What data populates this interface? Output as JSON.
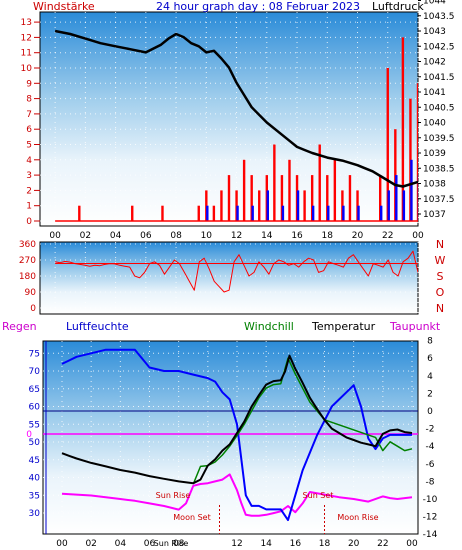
{
  "chart_data": [
    {
      "type": "line",
      "title": "24 hour graph day : 08 Februar 2023",
      "left_label": "Windstärke",
      "right_label": "Luftdruck",
      "x_ticks": [
        "00",
        "02",
        "04",
        "06",
        "08",
        "10",
        "12",
        "14",
        "16",
        "18",
        "20",
        "22",
        "00"
      ],
      "left_ticks": [
        "0",
        "1",
        "2",
        "3",
        "4",
        "5",
        "6",
        "7",
        "8",
        "9",
        "10",
        "11",
        "12",
        "13"
      ],
      "right_ticks": [
        "1037",
        "1037.5",
        "1038",
        "1038.5",
        "1039",
        "1039.5",
        "1040",
        "1040.5",
        "1041",
        "1041.5",
        "1042",
        "1042.5",
        "1043",
        "1043.5",
        "1044"
      ],
      "ylim_left": [
        0,
        13
      ],
      "ylim_right": [
        1036.8,
        1044.3
      ],
      "series": [
        {
          "name": "Luftdruck",
          "color": "#000000",
          "x": [
            0,
            1,
            2,
            3,
            4,
            5,
            6,
            7,
            7.5,
            8,
            8.5,
            9,
            9.5,
            10,
            10.5,
            11,
            11.5,
            12,
            12.5,
            13,
            13.5,
            14,
            15,
            15.5,
            16,
            16.5,
            17,
            18,
            19,
            20,
            20.5,
            21,
            22,
            22.5,
            23,
            24
          ],
          "y": [
            1043,
            1042.9,
            1042.75,
            1042.6,
            1042.5,
            1042.4,
            1042.3,
            1042.55,
            1042.75,
            1042.9,
            1042.8,
            1042.6,
            1042.5,
            1042.3,
            1042.35,
            1042.1,
            1041.8,
            1041.3,
            1040.9,
            1040.5,
            1040.25,
            1040.0,
            1039.6,
            1039.4,
            1039.2,
            1039.1,
            1039.0,
            1038.85,
            1038.75,
            1038.6,
            1038.5,
            1038.4,
            1038.1,
            1037.95,
            1037.9,
            1038.05
          ]
        },
        {
          "name": "Windstärke (Böen)",
          "color": "#ff0000",
          "x": [
            0,
            1,
            1.5,
            1.6,
            1.7,
            2,
            5,
            5.1,
            5.2,
            5.5,
            7,
            7.1,
            7.2,
            8,
            9,
            9.5,
            10,
            10.5,
            11,
            11.5,
            12,
            12.5,
            13,
            13.5,
            14,
            14.5,
            15,
            15.5,
            16,
            16.5,
            17,
            17.5,
            18,
            18.5,
            19,
            19.5,
            20,
            21,
            21.5,
            22,
            22.5,
            23,
            23.5,
            24
          ],
          "y": [
            0,
            0,
            0,
            1,
            0,
            0,
            0,
            1,
            0,
            0,
            0,
            1,
            0,
            0,
            0,
            1,
            2,
            1,
            2,
            3,
            2,
            4,
            3,
            2,
            3,
            5,
            3,
            4,
            3,
            2,
            3,
            5,
            3,
            4,
            2,
            3,
            2,
            0,
            3,
            10,
            6,
            12,
            8,
            9
          ]
        },
        {
          "name": "Windstärke (Mittel)",
          "color": "#0000ff",
          "x": [
            9,
            10,
            11,
            12,
            13,
            14,
            15,
            16,
            17,
            18,
            19,
            20,
            21,
            21.5,
            22,
            22.5,
            23,
            23.5,
            24
          ],
          "y": [
            0,
            1,
            0,
            1,
            1,
            2,
            1,
            2,
            1,
            1,
            1,
            1,
            0,
            1,
            2,
            3,
            2,
            4,
            3
          ]
        }
      ]
    },
    {
      "type": "scatter",
      "title": "",
      "y_ticks": [
        "0",
        "90",
        "180",
        "270",
        "360"
      ],
      "right_letters": [
        "N",
        "W",
        "S",
        "O",
        "N"
      ],
      "ylim": [
        0,
        360
      ],
      "series": [
        {
          "name": "Windrichtung",
          "color": "#ff0000",
          "x_range": [
            0,
            24
          ],
          "y": [
            260,
            255,
            262,
            258,
            250,
            245,
            240,
            235,
            240,
            238,
            245,
            250,
            248,
            240,
            235,
            230,
            180,
            170,
            200,
            250,
            260,
            240,
            190,
            230,
            270,
            250,
            200,
            150,
            100,
            260,
            280,
            220,
            150,
            120,
            90,
            100,
            260,
            300,
            240,
            180,
            200,
            260,
            230,
            190,
            250,
            270,
            260,
            240,
            250,
            230,
            260,
            280,
            270,
            200,
            210,
            260,
            250,
            240,
            230,
            280,
            300,
            260,
            220,
            180,
            250,
            240,
            230,
            270,
            200,
            180,
            260,
            280,
            320,
            200
          ]
        }
      ]
    },
    {
      "type": "line",
      "labels": {
        "regen": "Regen",
        "luftfeuchte": "Luftfeuchte",
        "windchill": "Windchill",
        "temperatur": "Temperatur",
        "taupunkt": "Taupunkt"
      },
      "x_ticks": [
        "00",
        "02",
        "04",
        "06",
        "08",
        "10",
        "12",
        "14",
        "16",
        "18",
        "20",
        "22",
        "00"
      ],
      "left_ticks": [
        "30",
        "35",
        "40",
        "45",
        "50",
        "55",
        "60",
        "65",
        "70",
        "75"
      ],
      "right_ticks": [
        "8",
        "6",
        "4",
        "2",
        "0",
        "-2",
        "-4",
        "-6",
        "-8",
        "-10",
        "-12",
        "-14"
      ],
      "ylim_left": [
        27,
        78
      ],
      "ylim_right": [
        -15.5,
        9
      ],
      "rain_zero_label": "0",
      "annotations": {
        "sun_rise": "Sun Rise",
        "sun_set": "Sun Set",
        "moon_set": "Moon Set",
        "moon_rise": "Moon Rise",
        "sun_rise_tick": "Sun Rise"
      },
      "series": [
        {
          "name": "Temperatur",
          "color": "#000000",
          "x": [
            0,
            0.5,
            1,
            2,
            3,
            4,
            5,
            6,
            7,
            8,
            9,
            9.5,
            10,
            10.5,
            11,
            11.5,
            12,
            12.5,
            13,
            13.5,
            14,
            14.5,
            15,
            15.3,
            15.6,
            16,
            16.5,
            17,
            17.5,
            18,
            18.5,
            19,
            19.5,
            20,
            20.5,
            21,
            21.5,
            22,
            22.5,
            23,
            23.5,
            24
          ],
          "y": [
            -4.8,
            -5.1,
            -5.4,
            -5.9,
            -6.3,
            -6.7,
            -7.0,
            -7.4,
            -7.7,
            -8.0,
            -8.2,
            -7.8,
            -6.2,
            -5.5,
            -4.5,
            -3.8,
            -2.5,
            -1.2,
            0.5,
            1.8,
            3.0,
            3.4,
            3.5,
            4.5,
            6.3,
            4.8,
            3.2,
            1.5,
            0.2,
            -1.0,
            -2.0,
            -2.5,
            -3.0,
            -3.3,
            -3.6,
            -3.8,
            -4.0,
            -2.6,
            -2.2,
            -2.1,
            -2.4,
            -2.5
          ]
        },
        {
          "name": "Windchill",
          "color": "#008000",
          "x": [
            9,
            9.5,
            10,
            10.5,
            11,
            11.5,
            12,
            12.5,
            13,
            13.5,
            14,
            14.5,
            15,
            15.5,
            16,
            16.5,
            17,
            17.5,
            18,
            21.5,
            22,
            22.5,
            23,
            23.5,
            24
          ],
          "y": [
            -8.3,
            -6.3,
            -6.2,
            -5.8,
            -5.0,
            -4.0,
            -2.8,
            -1.5,
            0.0,
            1.5,
            2.6,
            3.0,
            3.1,
            6.0,
            4.2,
            2.6,
            1.0,
            0.0,
            -1.0,
            -3.0,
            -4.5,
            -3.5,
            -4.0,
            -4.5,
            -4.3
          ]
        },
        {
          "name": "Taupunkt",
          "color": "#ff00ff",
          "x": [
            0,
            1,
            2,
            3,
            4,
            5,
            6,
            7,
            8,
            8.5,
            9,
            9.5,
            10,
            10.5,
            11,
            11.5,
            12,
            12.3,
            12.6,
            13,
            13.5,
            14,
            14.5,
            15,
            15.5,
            16,
            16.5,
            17,
            18,
            19,
            20,
            21,
            22,
            22.5,
            23,
            23.5,
            24
          ],
          "y": [
            -9.4,
            -9.5,
            -9.6,
            -9.8,
            -10.0,
            -10.2,
            -10.5,
            -10.8,
            -11.2,
            -10.5,
            -8.5,
            -8.3,
            -8.2,
            -8.0,
            -7.8,
            -7.2,
            -9.0,
            -10.5,
            -11.8,
            -11.9,
            -11.9,
            -11.8,
            -11.6,
            -11.4,
            -10.8,
            -11.5,
            -10.5,
            -9.2,
            -9.5,
            -9.8,
            -10.0,
            -10.3,
            -9.7,
            -9.9,
            -10.0,
            -9.9,
            -9.8
          ]
        },
        {
          "name": "Luftfeuchte",
          "color": "#0000ff",
          "x": [
            0,
            0.5,
            1,
            2,
            3,
            4,
            5,
            6,
            7,
            8,
            9,
            10,
            10.5,
            11,
            11.5,
            12,
            12.3,
            12.6,
            13,
            13.5,
            14,
            14.5,
            15,
            15.5,
            16,
            16.5,
            17,
            17.5,
            18,
            18.5,
            19,
            19.5,
            20,
            20.5,
            21,
            21.5,
            22,
            22.5,
            23,
            24
          ],
          "y": [
            72,
            73,
            74,
            75,
            76,
            76,
            76,
            71,
            70,
            70,
            69,
            68,
            67,
            64,
            62,
            55,
            45,
            35,
            32,
            32,
            31,
            31,
            31,
            28,
            35,
            42,
            47,
            52,
            56,
            60,
            62,
            64,
            66,
            60,
            51,
            48,
            51,
            52,
            52,
            52
          ]
        }
      ]
    }
  ]
}
